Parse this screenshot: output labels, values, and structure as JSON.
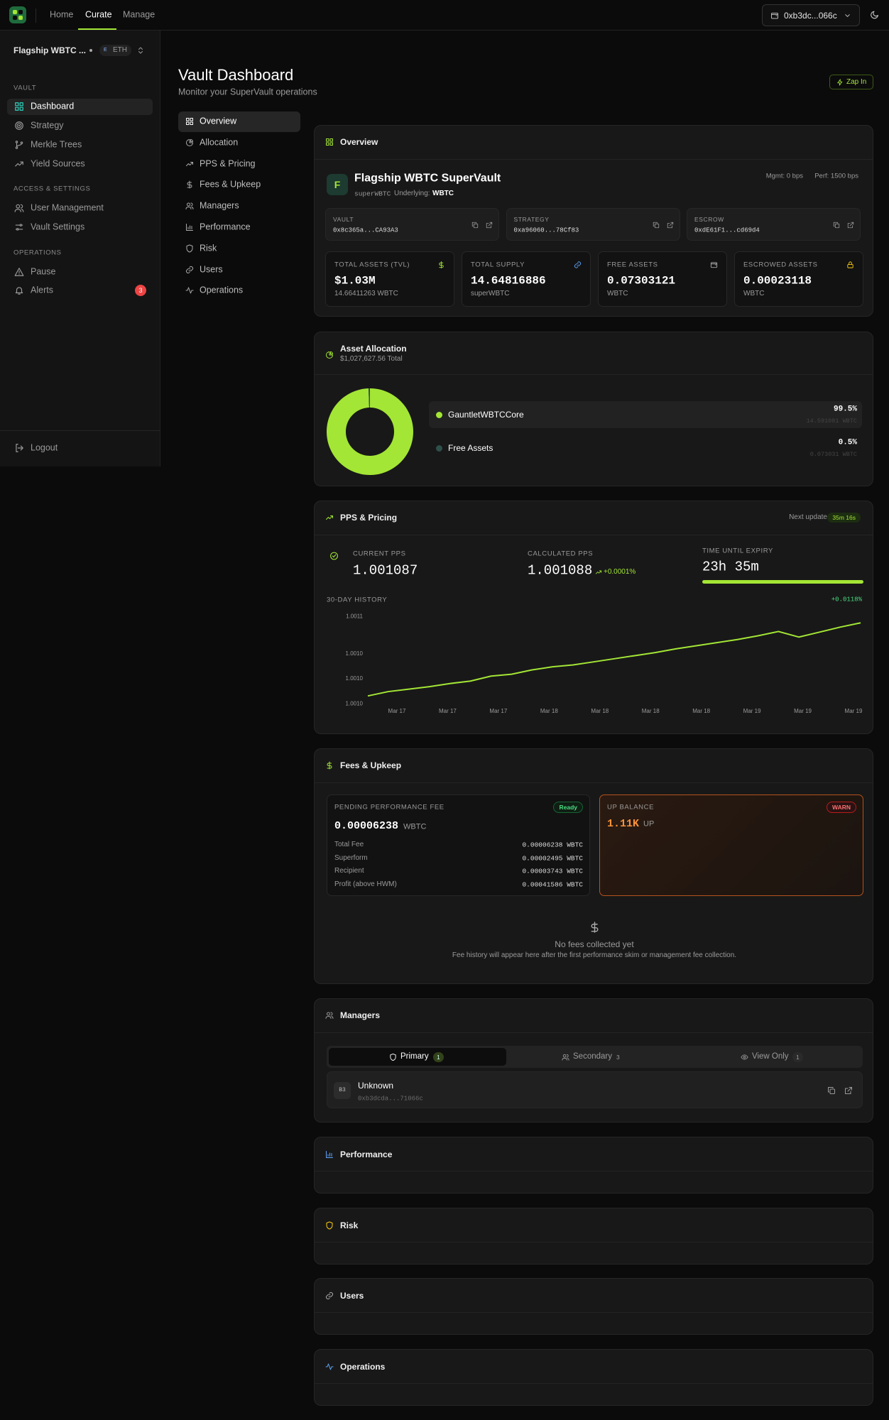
{
  "topbar": {
    "nav": [
      "Home",
      "Curate",
      "Manage"
    ],
    "wallet": "0xb3dc...066c"
  },
  "sidebar": {
    "vault_name": "Flagship WBTC ...",
    "network_icon": "E",
    "network": "ETH",
    "groups": [
      {
        "title": "VAULT",
        "items": [
          "Dashboard",
          "Strategy",
          "Merkle Trees",
          "Yield Sources"
        ]
      },
      {
        "title": "ACCESS & SETTINGS",
        "items": [
          "User Management",
          "Vault Settings"
        ]
      },
      {
        "title": "OPERATIONS",
        "items": [
          "Pause",
          "Alerts"
        ]
      }
    ],
    "alerts_badge": 3,
    "logout": "Logout"
  },
  "header": {
    "title": "Vault Dashboard",
    "subtitle": "Monitor your SuperVault operations",
    "action": "Zap In"
  },
  "section_nav": [
    "Overview",
    "Allocation",
    "PPS & Pricing",
    "Fees & Upkeep",
    "Managers",
    "Performance",
    "Risk",
    "Users",
    "Operations"
  ],
  "overview": {
    "title": "Overview",
    "icon": "F",
    "vault_name": "Flagship WBTC SuperVault",
    "symbol": "superWBTC",
    "underlying_label": "Underlying:",
    "underlying": "WBTC",
    "mgmt_fee": "Mgmt: 0 bps",
    "perf_fee": "Perf: 1500 bps",
    "addresses": [
      {
        "label": "VAULT",
        "value": "0x8c365a...CA93A3"
      },
      {
        "label": "STRATEGY",
        "value": "0xa96060...78Cf83"
      },
      {
        "label": "ESCROW",
        "value": "0xdE61F1...cd69d4"
      }
    ],
    "stats": [
      {
        "label": "TOTAL ASSETS (TVL)",
        "value": "$1.03M",
        "sub": "14.66411263 WBTC"
      },
      {
        "label": "TOTAL SUPPLY",
        "value": "14.64816886",
        "sub": "superWBTC"
      },
      {
        "label": "FREE ASSETS",
        "value": "0.07303121",
        "sub": "WBTC"
      },
      {
        "label": "ESCROWED ASSETS",
        "value": "0.00023118",
        "sub": "WBTC"
      }
    ]
  },
  "allocation": {
    "title": "Asset Allocation",
    "subtitle": "$1,027,627.56 Total",
    "chart": {
      "type": "pie",
      "categories": [
        "GauntletWBTCCore",
        "Free Assets"
      ],
      "values": [
        99.5,
        0.5
      ],
      "value_labels": [
        "99.5%",
        "0.5%"
      ],
      "amounts": [
        "14.591081 WBTC",
        "0.073031 WBTC"
      ],
      "colors": [
        "#a3e635",
        "#2f4f4a"
      ]
    }
  },
  "pps": {
    "title": "PPS & Pricing",
    "next_label": "Next update",
    "next_value": "35m 16s",
    "current_label": "CURRENT PPS",
    "current": "1.001087",
    "calculated_label": "CALCULATED PPS",
    "calculated": "1.001088",
    "calculated_change": "+0.0001%",
    "expiry_label": "TIME UNTIL EXPIRY",
    "expiry": "23h 35m",
    "history": {
      "type": "line",
      "title": "30-DAY HISTORY",
      "change": "+0.0118%",
      "color": "#a3e635",
      "values": [
        1.000969,
        1.000976,
        1.00098,
        1.000984,
        1.000989,
        1.000993,
        1.001001,
        1.001004,
        1.001011,
        1.001016,
        1.001019,
        1.001024,
        1.001029,
        1.001034,
        1.001039,
        1.001045,
        1.00105,
        1.001055,
        1.00106,
        1.001066,
        1.001073,
        1.001064,
        1.001072,
        1.00108,
        1.001087
      ],
      "ylim": [
        1.000952,
        1.001101
      ],
      "yticks": [
        {
          "value": 1.001097,
          "label": "1.0011"
        },
        {
          "value": 1.001037,
          "label": "1.0010"
        },
        {
          "value": 1.000997,
          "label": "1.0010"
        },
        {
          "value": 1.000956,
          "label": "1.0010"
        }
      ],
      "xticks": [
        "Mar 17",
        "Mar 17",
        "Mar 17",
        "Mar 18",
        "Mar 18",
        "Mar 18",
        "Mar 18",
        "Mar 19",
        "Mar 19",
        "Mar 19"
      ]
    }
  },
  "fees": {
    "title": "Fees & Upkeep",
    "pending": {
      "label": "PENDING PERFORMANCE FEE",
      "status": "Ready",
      "value": "0.00006238",
      "unit": "WBTC",
      "rows": [
        [
          "Total Fee",
          "0.00006238 WBTC"
        ],
        [
          "Superform",
          "0.00002495 WBTC"
        ],
        [
          "Recipient",
          "0.00003743 WBTC"
        ],
        [
          "Profit (above HWM)",
          "0.00041586 WBTC"
        ]
      ]
    },
    "up": {
      "label": "UP BALANCE",
      "status": "WARN",
      "value": "1.11K",
      "unit": "UP"
    },
    "empty_title": "No fees collected yet",
    "empty_text": "Fee history will appear here after the first performance skim or management fee collection."
  },
  "managers": {
    "title": "Managers",
    "tabs": [
      {
        "label": "Primary",
        "count": 1
      },
      {
        "label": "Secondary",
        "count": 3
      },
      {
        "label": "View Only",
        "count": 1
      }
    ],
    "list": [
      {
        "avatar": "B3",
        "name": "Unknown",
        "address": "0xb3dcda...71066c"
      }
    ]
  },
  "sections": [
    "Performance",
    "Risk",
    "Users",
    "Operations"
  ]
}
